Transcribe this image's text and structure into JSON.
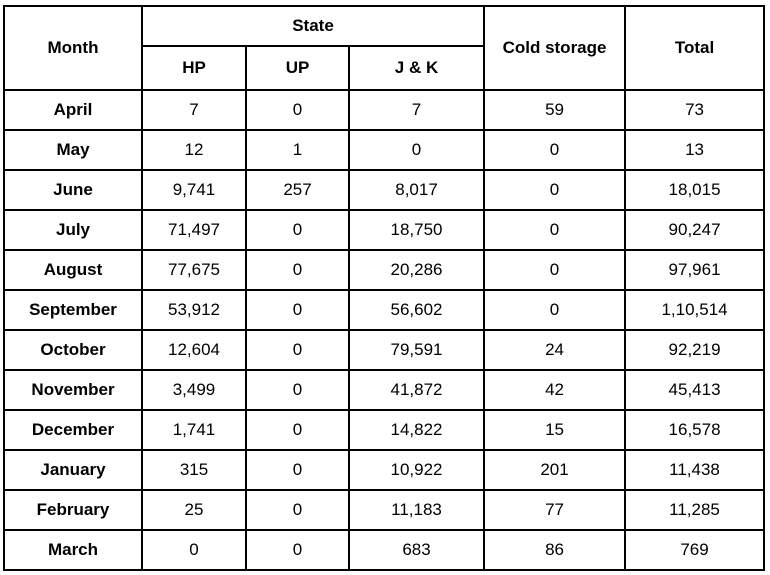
{
  "headers": {
    "month": "Month",
    "state": "State",
    "hp": "HP",
    "up": "UP",
    "jk": "J & K",
    "cold_storage": "Cold storage",
    "total": "Total"
  },
  "rows": [
    {
      "month": "April",
      "hp": "7",
      "up": "0",
      "jk": "7",
      "cold": "59",
      "total": "73"
    },
    {
      "month": "May",
      "hp": "12",
      "up": "1",
      "jk": "0",
      "cold": "0",
      "total": "13"
    },
    {
      "month": "June",
      "hp": "9,741",
      "up": "257",
      "jk": "8,017",
      "cold": "0",
      "total": "18,015"
    },
    {
      "month": "July",
      "hp": "71,497",
      "up": "0",
      "jk": "18,750",
      "cold": "0",
      "total": "90,247"
    },
    {
      "month": "August",
      "hp": "77,675",
      "up": "0",
      "jk": "20,286",
      "cold": "0",
      "total": "97,961"
    },
    {
      "month": "September",
      "hp": "53,912",
      "up": "0",
      "jk": "56,602",
      "cold": "0",
      "total": "1,10,514"
    },
    {
      "month": "October",
      "hp": "12,604",
      "up": "0",
      "jk": "79,591",
      "cold": "24",
      "total": "92,219"
    },
    {
      "month": "November",
      "hp": "3,499",
      "up": "0",
      "jk": "41,872",
      "cold": "42",
      "total": "45,413"
    },
    {
      "month": "December",
      "hp": "1,741",
      "up": "0",
      "jk": "14,822",
      "cold": "15",
      "total": "16,578"
    },
    {
      "month": "January",
      "hp": "315",
      "up": "0",
      "jk": "10,922",
      "cold": "201",
      "total": "11,438"
    },
    {
      "month": "February",
      "hp": "25",
      "up": "0",
      "jk": "11,183",
      "cold": "77",
      "total": "11,285"
    },
    {
      "month": "March",
      "hp": "0",
      "up": "0",
      "jk": "683",
      "cold": "86",
      "total": "769"
    }
  ]
}
